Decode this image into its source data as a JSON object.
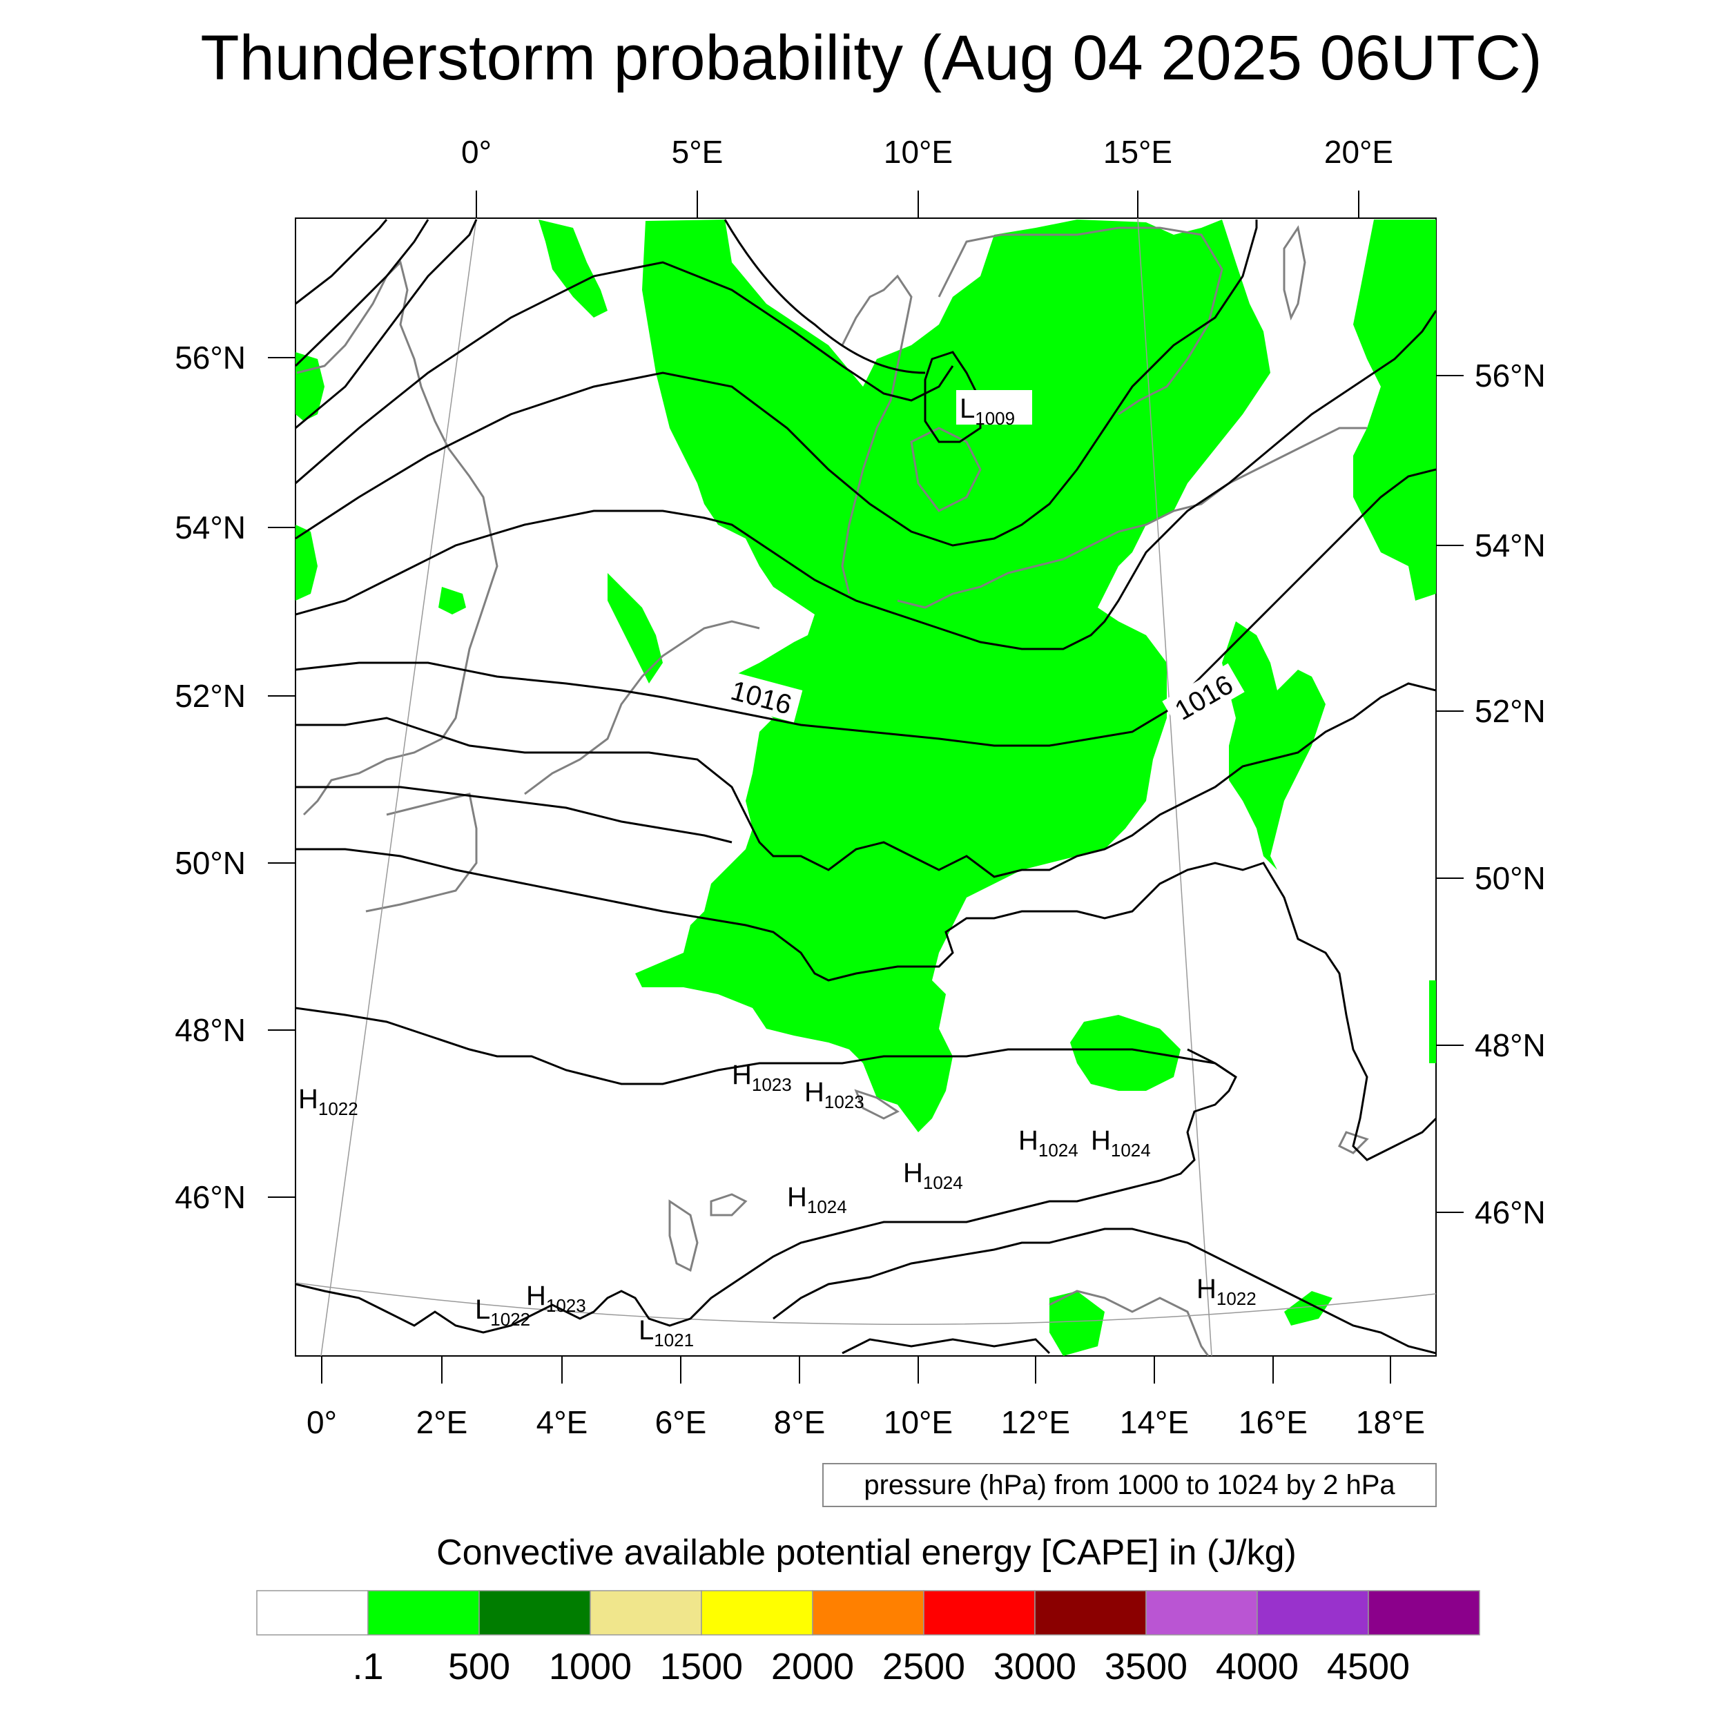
{
  "title": "Thunderstorm probability (Aug 04 2025 06UTC)",
  "axes": {
    "top": [
      "0°",
      "5°E",
      "10°E",
      "15°E",
      "20°E"
    ],
    "bottom": [
      "0°",
      "2°E",
      "4°E",
      "6°E",
      "8°E",
      "10°E",
      "12°E",
      "14°E",
      "16°E",
      "18°E"
    ],
    "left": [
      "56°N",
      "54°N",
      "52°N",
      "50°N",
      "48°N",
      "46°N"
    ],
    "right": [
      "56°N",
      "54°N",
      "52°N",
      "50°N",
      "48°N",
      "46°N"
    ]
  },
  "isobar_labels": [
    "1016",
    "1016"
  ],
  "pressure_centers": [
    {
      "type": "L",
      "value": "1009"
    },
    {
      "type": "H",
      "value": "1022"
    },
    {
      "type": "H",
      "value": "1023"
    },
    {
      "type": "H",
      "value": "1023"
    },
    {
      "type": "H",
      "value": "1024"
    },
    {
      "type": "H",
      "value": "1024"
    },
    {
      "type": "H",
      "value": "1024"
    },
    {
      "type": "H",
      "value": "1024"
    },
    {
      "type": "H",
      "value": "1022"
    },
    {
      "type": "L",
      "value": "1022"
    },
    {
      "type": "H",
      "value": "1023"
    },
    {
      "type": "L",
      "value": "1021"
    }
  ],
  "contour_info": "pressure (hPa) from 1000 to 1024 by 2 hPa",
  "colorbar": {
    "title": "Convective available potential energy [CAPE] in (J/kg)",
    "colors": [
      "#ffffff",
      "#00ff00",
      "#007d00",
      "#f0e68c",
      "#ffff00",
      "#ff8000",
      "#ff0000",
      "#8b0000",
      "#ba55d3",
      "#9932cc",
      "#8b008b"
    ],
    "labels": [
      ".1",
      "500",
      "1000",
      "1500",
      "2000",
      "2500",
      "3000",
      "3500",
      "4000",
      "4500"
    ]
  },
  "colors": {
    "cape_fill": "#00ff00",
    "isobar": "#000000",
    "coastline": "#808080"
  }
}
